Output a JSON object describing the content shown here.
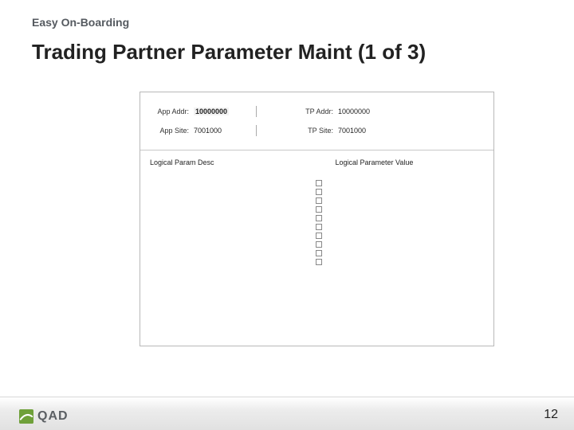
{
  "slide": {
    "subtitle": "Easy On-Boarding",
    "title": "Trading Partner Parameter Maint (1 of 3)",
    "page_number": "12"
  },
  "panel": {
    "header": {
      "left": [
        {
          "label": "App Addr:",
          "value": "10000000",
          "emphasis": true
        },
        {
          "label": "App Site:",
          "value": "7001000",
          "emphasis": false
        }
      ],
      "right": [
        {
          "label": "TP Addr:",
          "value": "10000000"
        },
        {
          "label": "TP Site:",
          "value": "7001000"
        }
      ]
    },
    "columns": {
      "left": "Logical Param Desc",
      "right": "Logical Parameter Value"
    },
    "checkbox_count": 10
  },
  "brand": {
    "name": "QAD",
    "logo_bg": "#6fa03a",
    "logo_swoosh": "#ffffff",
    "text_color": "#5b5f63"
  },
  "colors": {
    "panel_border": "#b8b8b8",
    "divider": "#c8c8c8",
    "footer_grad_top": "#ffffff",
    "footer_grad_bot": "#e1e1e1"
  }
}
